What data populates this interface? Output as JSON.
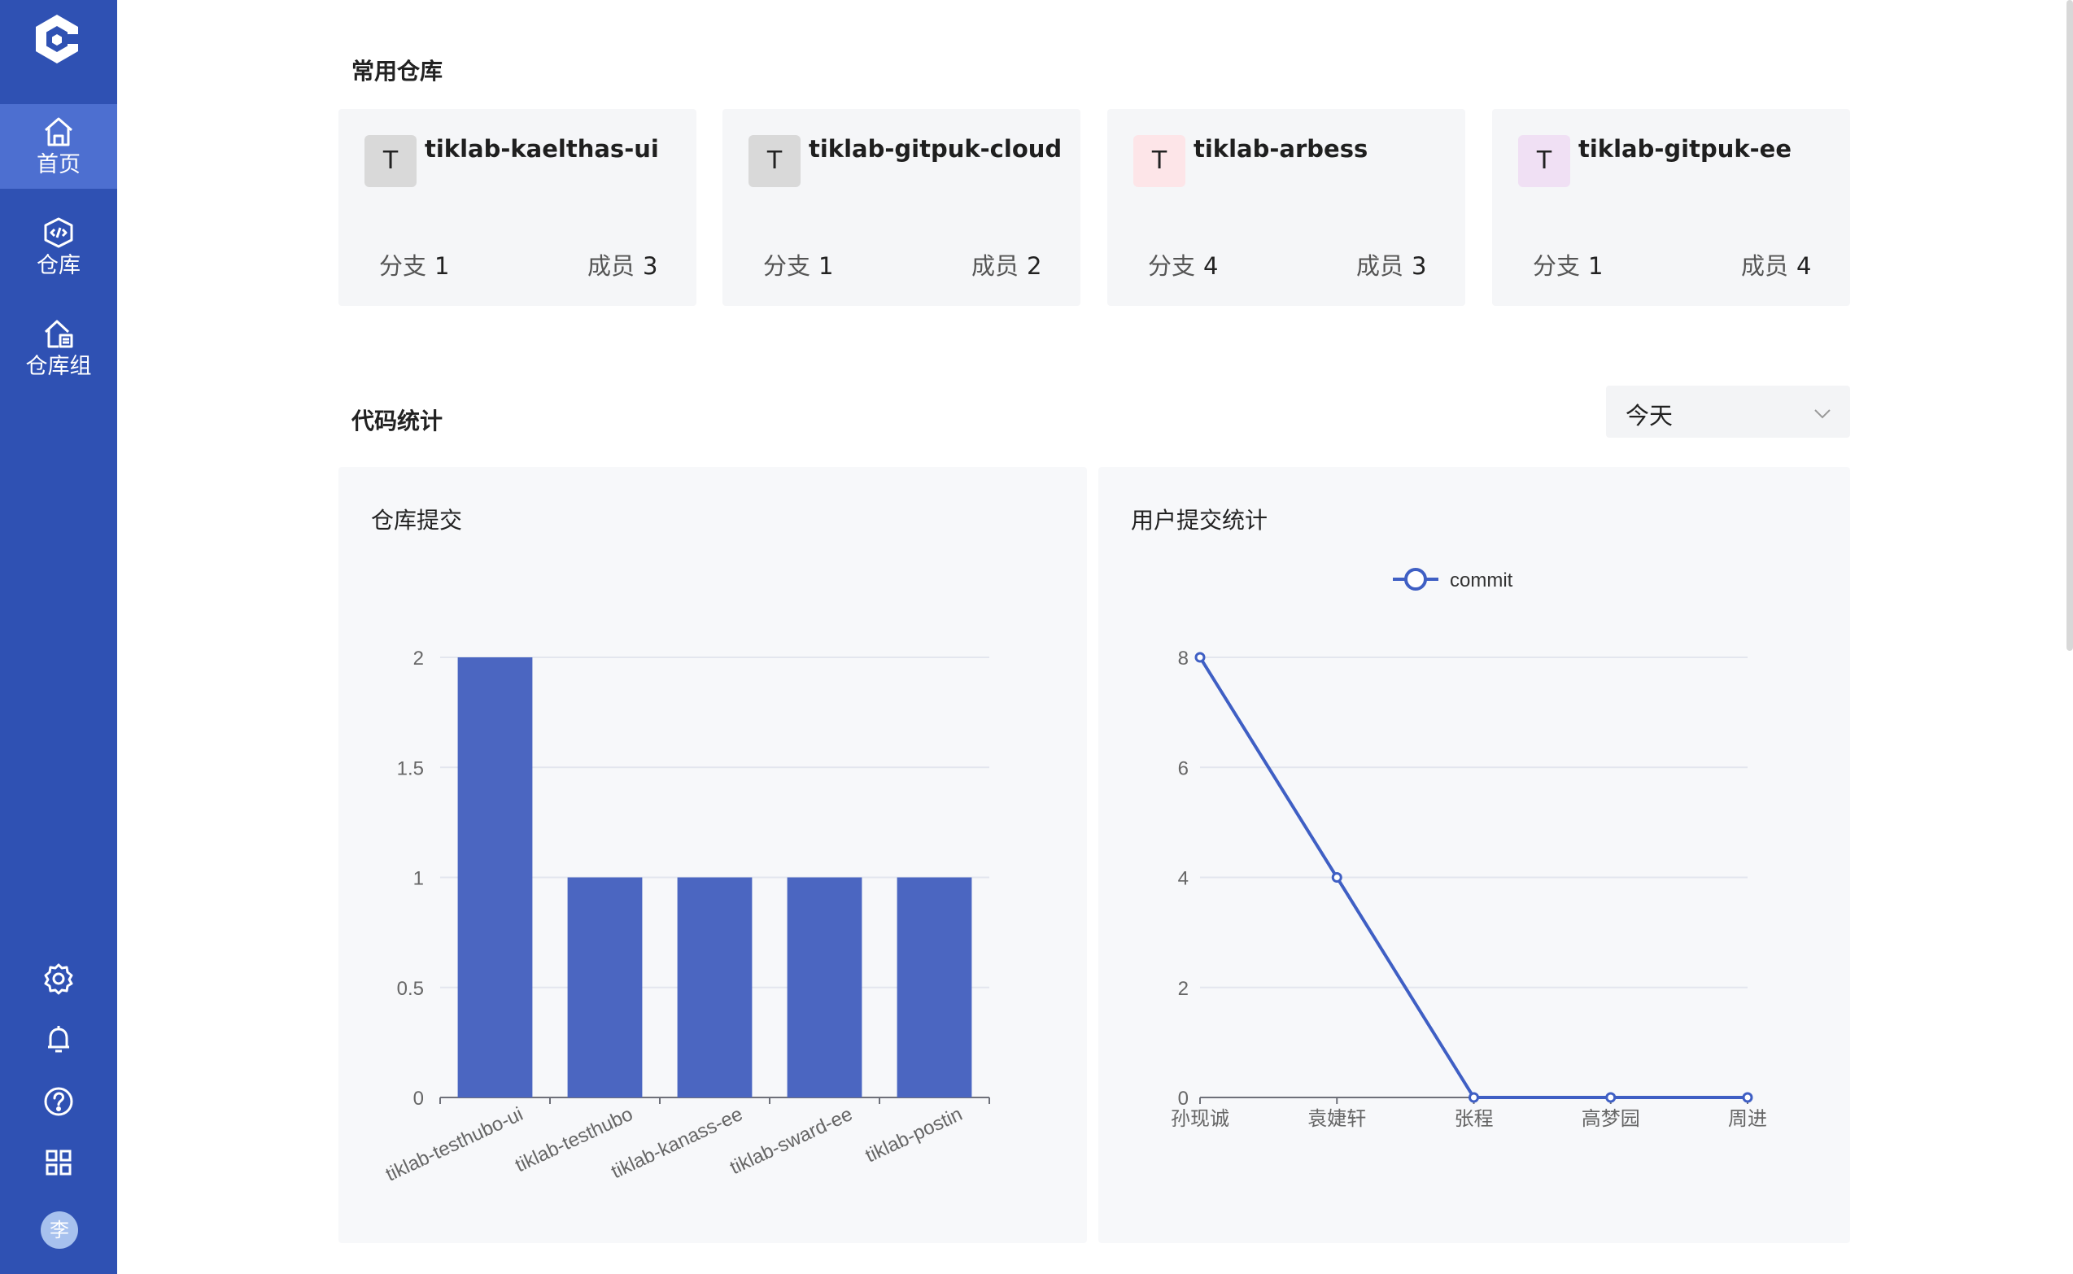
{
  "sidebar": {
    "items": [
      {
        "label": "首页",
        "icon": "home-icon",
        "active": true
      },
      {
        "label": "仓库",
        "icon": "repository-icon",
        "active": false
      },
      {
        "label": "仓库组",
        "icon": "repository-group-icon",
        "active": false
      }
    ],
    "bottom_icons": [
      "settings-icon",
      "bell-icon",
      "help-icon",
      "apps-grid-icon"
    ],
    "avatar_text": "李"
  },
  "common_repos": {
    "title": "常用仓库",
    "cards": [
      {
        "badge": "T",
        "badge_color": "#d9d9d9",
        "name": "tiklab-kaelthas-ui",
        "branch_label": "分支",
        "branch_count": "1",
        "member_label": "成员",
        "member_count": "3"
      },
      {
        "badge": "T",
        "badge_color": "#d9d9d9",
        "name": "tiklab-gitpuk-cloud",
        "branch_label": "分支",
        "branch_count": "1",
        "member_label": "成员",
        "member_count": "2"
      },
      {
        "badge": "T",
        "badge_color": "#fde5e8",
        "name": "tiklab-arbess",
        "branch_label": "分支",
        "branch_count": "4",
        "member_label": "成员",
        "member_count": "3"
      },
      {
        "badge": "T",
        "badge_color": "#f0e0f4",
        "name": "tiklab-gitpuk-ee",
        "branch_label": "分支",
        "branch_count": "1",
        "member_label": "成员",
        "member_count": "4"
      }
    ]
  },
  "code_stats": {
    "title": "代码统计",
    "period_selected": "今天",
    "repo_commit_title": "仓库提交",
    "user_commit_title": "用户提交统计"
  },
  "colors": {
    "sidebar": "#2f51b3",
    "bar": "#4b66c1",
    "line": "#3f5fc4"
  },
  "chart_data": [
    {
      "type": "bar",
      "title": "仓库提交",
      "categories": [
        "tiklab-testhubo-ui",
        "tiklab-testhubo",
        "tiklab-kanass-ee",
        "tiklab-sward-ee",
        "tiklab-postin"
      ],
      "values": [
        2,
        1,
        1,
        1,
        1
      ],
      "ylim": [
        0,
        2
      ],
      "yticks": [
        "0",
        "0.5",
        "1",
        "1.5",
        "2"
      ],
      "grid": true
    },
    {
      "type": "line",
      "title": "用户提交统计",
      "categories": [
        "孙现诚",
        "袁婕轩",
        "张程",
        "高梦园",
        "周进"
      ],
      "series": [
        {
          "name": "commit",
          "values": [
            8,
            4,
            0,
            0,
            0
          ]
        }
      ],
      "ylim": [
        0,
        8
      ],
      "yticks": [
        "0",
        "2",
        "4",
        "6",
        "8"
      ],
      "legend": "top-center",
      "grid": true
    }
  ]
}
